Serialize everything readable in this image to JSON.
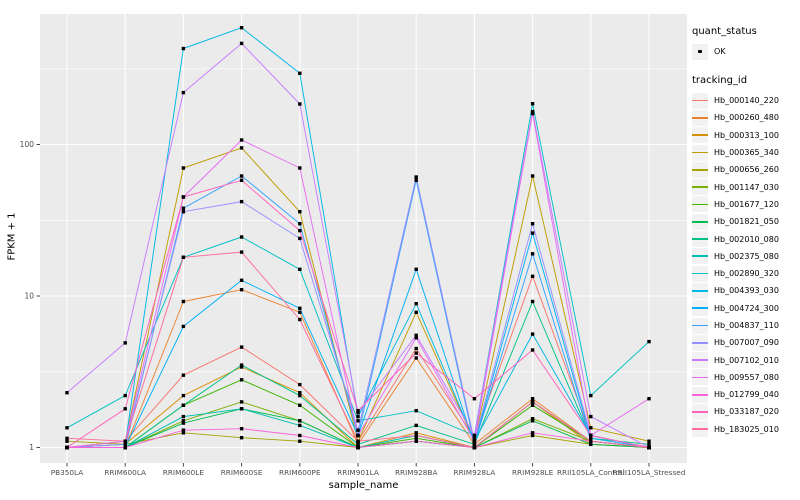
{
  "chart_data": {
    "type": "line",
    "title": "",
    "xlabel": "sample_name",
    "ylabel": "FPKM + 1",
    "y_scale": "log10",
    "y_ticks": [
      1,
      10,
      100
    ],
    "grid": true,
    "legend_position": "right",
    "panel_bg": "#EBEBEB",
    "grid_color": "#FFFFFF",
    "tick_color": "#333333",
    "axis_text_color": "#4D4D4D",
    "marker": {
      "shape": "square",
      "color": "#000000",
      "meaning": "quant_status OK"
    },
    "categories": [
      "PB350LA",
      "RRIM600LA",
      "RRIM600LE",
      "RRIM600SE",
      "RRIM600PE",
      "RRIM901LA",
      "RRIM928BA",
      "RRIM928LA",
      "RRIM928LE",
      "RRII105LA_Control",
      "RRII105LA_Stressed"
    ],
    "series": [
      {
        "name": "Hb_000140_220",
        "color": "#F8766D",
        "values": [
          1.0,
          1.1,
          3.0,
          4.6,
          2.6,
          1.1,
          4.5,
          1.15,
          13.5,
          1.2,
          1.0
        ]
      },
      {
        "name": "Hb_000260_480",
        "color": "#EA8331",
        "values": [
          1.0,
          1.0,
          9.2,
          11.0,
          7.8,
          1.05,
          3.9,
          1.05,
          2.1,
          1.1,
          1.0
        ]
      },
      {
        "name": "Hb_000313_100",
        "color": "#D89000",
        "values": [
          1.0,
          1.05,
          2.2,
          3.4,
          2.3,
          1.0,
          1.25,
          1.0,
          2.0,
          1.05,
          1.0
        ]
      },
      {
        "name": "Hb_000365_340",
        "color": "#C09B00",
        "values": [
          1.0,
          1.1,
          70,
          95,
          36,
          1.1,
          7.8,
          1.1,
          62,
          1.35,
          1.1
        ]
      },
      {
        "name": "Hb_000656_260",
        "color": "#A3A500",
        "values": [
          1.1,
          1.05,
          1.25,
          1.16,
          1.1,
          1.0,
          1.1,
          1.0,
          1.2,
          1.05,
          1.0
        ]
      },
      {
        "name": "Hb_001147_030",
        "color": "#7CAE00",
        "values": [
          1.0,
          1.0,
          1.5,
          2.0,
          1.5,
          1.0,
          1.1,
          1.0,
          1.55,
          1.1,
          1.0
        ]
      },
      {
        "name": "Hb_001677_120",
        "color": "#39B600",
        "values": [
          1.0,
          1.0,
          1.9,
          2.8,
          1.9,
          1.0,
          1.15,
          1.0,
          1.9,
          1.1,
          1.0
        ]
      },
      {
        "name": "Hb_001821_050",
        "color": "#00BB4E",
        "values": [
          1.0,
          1.0,
          1.45,
          1.8,
          1.5,
          1.0,
          1.1,
          1.0,
          1.5,
          1.05,
          1.0
        ]
      },
      {
        "name": "Hb_002010_080",
        "color": "#00C087",
        "values": [
          1.0,
          1.0,
          1.9,
          3.5,
          2.2,
          1.05,
          1.4,
          1.05,
          9.2,
          1.15,
          1.05
        ]
      },
      {
        "name": "Hb_002375_080",
        "color": "#00C0B2",
        "values": [
          1.0,
          1.0,
          1.6,
          1.8,
          1.4,
          1.0,
          1.2,
          1.0,
          2.0,
          1.1,
          1.0
        ]
      },
      {
        "name": "Hb_002890_320",
        "color": "#00BFC4",
        "values": [
          1.35,
          2.2,
          18,
          24.5,
          15,
          1.5,
          1.75,
          1.2,
          186,
          2.2,
          5.0
        ]
      },
      {
        "name": "Hb_004393_030",
        "color": "#00B8E5",
        "values": [
          1.0,
          1.05,
          430,
          590,
          295,
          1.6,
          8.9,
          1.1,
          5.6,
          1.2,
          1.0
        ]
      },
      {
        "name": "Hb_004724_300",
        "color": "#00B0F6",
        "values": [
          1.0,
          1.0,
          6.3,
          12.7,
          8.3,
          1.2,
          15,
          1.05,
          26,
          1.15,
          1.0
        ]
      },
      {
        "name": "Hb_004837_110",
        "color": "#35A2FF",
        "values": [
          1.0,
          1.0,
          38,
          62,
          30,
          1.2,
          58,
          1.05,
          19,
          1.1,
          1.0
        ]
      },
      {
        "name": "Hb_007007_090",
        "color": "#9590FF",
        "values": [
          1.0,
          1.05,
          36,
          42,
          24,
          1.3,
          61,
          1.1,
          30,
          1.2,
          1.0
        ]
      },
      {
        "name": "Hb_007102_010",
        "color": "#C77CFF",
        "values": [
          2.3,
          4.9,
          220,
          465,
          185,
          1.7,
          5.5,
          1.2,
          165,
          1.6,
          1.0
        ]
      },
      {
        "name": "Hb_009557_080",
        "color": "#E76BF3",
        "values": [
          1.0,
          1.1,
          45,
          107,
          70,
          1.2,
          5.3,
          1.1,
          160,
          1.2,
          2.1
        ]
      },
      {
        "name": "Hb_012799_040",
        "color": "#FA62DB",
        "values": [
          1.0,
          1.0,
          1.3,
          1.33,
          1.2,
          1.0,
          1.1,
          1.0,
          1.25,
          1.1,
          1.0
        ]
      },
      {
        "name": "Hb_033187_020",
        "color": "#FF62BC",
        "values": [
          1.0,
          1.8,
          45,
          58,
          27,
          1.75,
          4.2,
          2.1,
          4.4,
          1.2,
          1.0
        ]
      },
      {
        "name": "Hb_183025_010",
        "color": "#FF6A98",
        "values": [
          1.15,
          1.1,
          18,
          19.5,
          7.0,
          1.1,
          1.2,
          1.0,
          2.0,
          1.1,
          1.0
        ]
      }
    ]
  },
  "legend": {
    "quant_status": {
      "title": "quant_status",
      "items": [
        {
          "label": "OK"
        }
      ]
    },
    "tracking": {
      "title": "tracking_id"
    }
  }
}
